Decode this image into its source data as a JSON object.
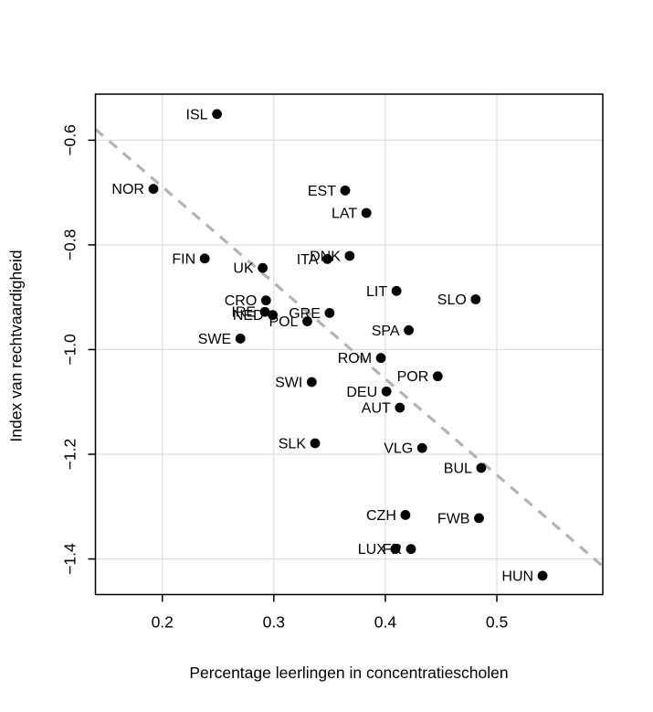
{
  "chart_data": {
    "type": "scatter",
    "title": "",
    "xlabel": "Percentage leerlingen in concentratiescholen",
    "ylabel": "Index van rechtvaardigheid",
    "xlim": [
      0.14,
      0.595
    ],
    "ylim": [
      -1.468,
      -0.512
    ],
    "x_ticks": [
      0.2,
      0.3,
      0.4,
      0.5
    ],
    "x_tick_labels": [
      "0.2",
      "0.3",
      "0.4",
      "0.5"
    ],
    "y_ticks": [
      -0.6,
      -0.8,
      -1.0,
      -1.2,
      -1.4
    ],
    "y_tick_labels": [
      "−0.6",
      "−0.8",
      "−1.0",
      "−1.2",
      "−1.4"
    ],
    "grid": true,
    "legend": "none",
    "colors": {
      "point": "#000000",
      "grid": "#dcdcdc",
      "box": "#000000",
      "trendline": "#b3b3b3",
      "background": "#ffffff"
    },
    "trendline": {
      "style": "dashed",
      "x1": 0.14,
      "y1": -0.579,
      "x2": 0.595,
      "y2": -1.414
    },
    "points": [
      {
        "label": "ISL",
        "x": 0.249,
        "y": -0.55
      },
      {
        "label": "NOR",
        "x": 0.192,
        "y": -0.693
      },
      {
        "label": "EST",
        "x": 0.364,
        "y": -0.696
      },
      {
        "label": "LAT",
        "x": 0.383,
        "y": -0.739
      },
      {
        "label": "DNK",
        "x": 0.368,
        "y": -0.821
      },
      {
        "label": "ITA",
        "x": 0.348,
        "y": -0.827
      },
      {
        "label": "FIN",
        "x": 0.238,
        "y": -0.826
      },
      {
        "label": "UK",
        "x": 0.29,
        "y": -0.844
      },
      {
        "label": "LIT",
        "x": 0.41,
        "y": -0.888
      },
      {
        "label": "SLO",
        "x": 0.481,
        "y": -0.904
      },
      {
        "label": "CRO",
        "x": 0.293,
        "y": -0.906
      },
      {
        "label": "IRE",
        "x": 0.292,
        "y": -0.928
      },
      {
        "label": "NED",
        "x": 0.299,
        "y": -0.934
      },
      {
        "label": "GRE",
        "x": 0.35,
        "y": -0.93
      },
      {
        "label": "POL",
        "x": 0.33,
        "y": -0.946
      },
      {
        "label": "SPA",
        "x": 0.421,
        "y": -0.963
      },
      {
        "label": "SWE",
        "x": 0.27,
        "y": -0.979
      },
      {
        "label": "ROM",
        "x": 0.396,
        "y": -1.016
      },
      {
        "label": "SWI",
        "x": 0.334,
        "y": -1.062
      },
      {
        "label": "POR",
        "x": 0.447,
        "y": -1.051
      },
      {
        "label": "DEU",
        "x": 0.401,
        "y": -1.08
      },
      {
        "label": "AUT",
        "x": 0.413,
        "y": -1.111
      },
      {
        "label": "SLK",
        "x": 0.337,
        "y": -1.179
      },
      {
        "label": "VLG",
        "x": 0.433,
        "y": -1.188
      },
      {
        "label": "BUL",
        "x": 0.486,
        "y": -1.226
      },
      {
        "label": "CZH",
        "x": 0.418,
        "y": -1.316
      },
      {
        "label": "FWB",
        "x": 0.484,
        "y": -1.322
      },
      {
        "label": "LUX",
        "x": 0.409,
        "y": -1.381
      },
      {
        "label": "FR",
        "x": 0.423,
        "y": -1.381
      },
      {
        "label": "HUN",
        "x": 0.541,
        "y": -1.432
      }
    ]
  }
}
